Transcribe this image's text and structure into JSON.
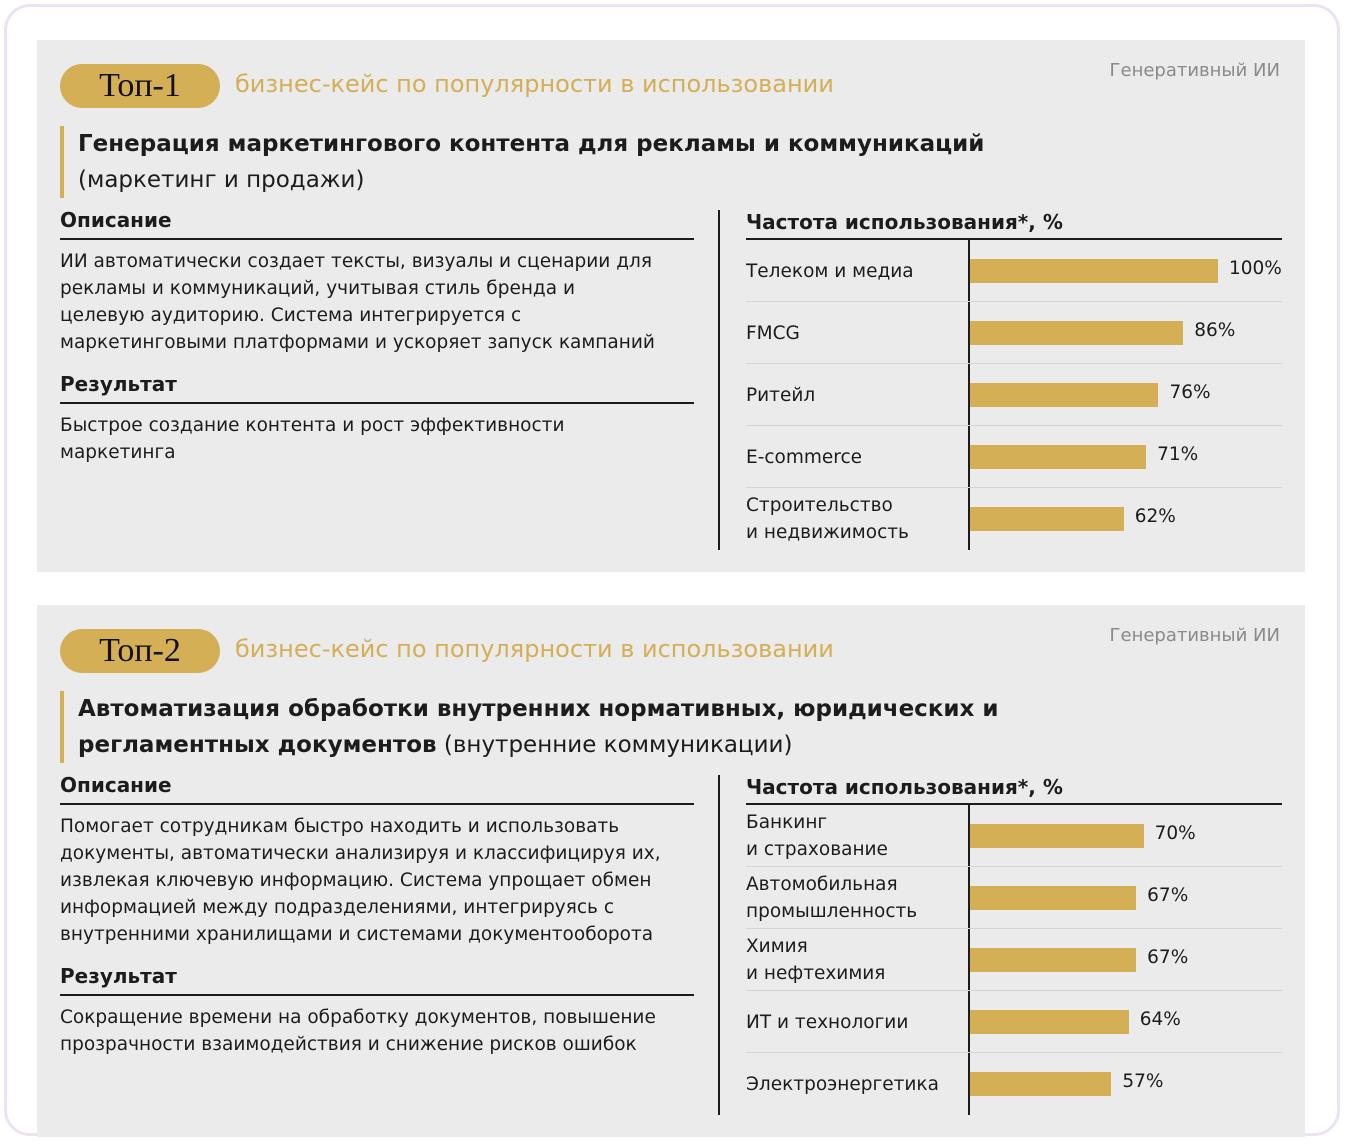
{
  "cards": [
    {
      "badge": "Топ-1",
      "subtitle": "бизнес-кейс по популярности в использовании",
      "tag": "Генеративный ИИ",
      "title_bold": "Генерация маркетингового контента для рекламы и коммуникаций",
      "title_normal": "(маркетинг и продажи)",
      "description_heading": "Описание",
      "description": "ИИ автоматически создает тексты, визуалы и сценарии для рекламы и коммуникаций, учитывая стиль бренда и целевую аудиторию. Система интегрируется с маркетинговыми платформами и ускоряет запуск кампаний",
      "result_heading": "Результат",
      "result": "Быстрое создание контента и рост эффективности маркетинга"
    },
    {
      "badge": "Топ-2",
      "subtitle": "бизнес-кейс по популярности в использовании",
      "tag": "Генеративный ИИ",
      "title_bold": "Автоматизация обработки внутренних нормативных, юридических и регламентных документов",
      "title_normal": "(внутренние коммуникации)",
      "description_heading": "Описание",
      "description": "Помогает сотрудникам быстро находить и использовать документы, автоматически анализируя и классифицируя их, извлекая ключевую информацию. Система упрощает обмен информацией между подразделениями, интегрируясь с внутренними хранилищами и системами документооборота",
      "result_heading": "Результат",
      "result": "Сокращение времени на обработку документов, повышение прозрачности взаимодействия и снижение рисков ошибок"
    }
  ],
  "chart_data": [
    {
      "type": "bar",
      "orientation": "horizontal",
      "title": "Частота использования*, %",
      "categories": [
        "Телеком и медиа",
        "FMCG",
        "Ритейл",
        "E-commerce",
        "Строительство\nи недвижимость"
      ],
      "values": [
        100,
        86,
        76,
        71,
        62
      ],
      "value_labels": [
        "100%",
        "86%",
        "76%",
        "71%",
        "62%"
      ],
      "color": "#d4af55"
    },
    {
      "type": "bar",
      "orientation": "horizontal",
      "title": "Частота использования*, %",
      "categories": [
        "Банкинг\nи страхование",
        "Автомобильная\nпромышленность",
        "Химия\nи нефтехимия",
        "ИТ и технологии",
        "Электроэнергетика"
      ],
      "values": [
        70,
        67,
        67,
        64,
        57
      ],
      "value_labels": [
        "70%",
        "67%",
        "67%",
        "64%",
        "57%"
      ],
      "color": "#d4af55"
    }
  ]
}
